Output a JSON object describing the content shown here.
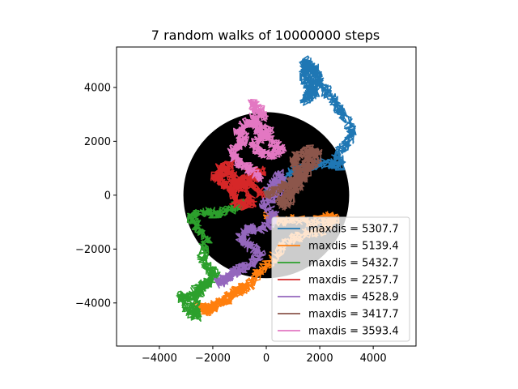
{
  "chart_data": {
    "type": "line",
    "title": "7 random walks of 10000000 steps",
    "xlabel": "",
    "ylabel": "",
    "xlim": [
      -5600,
      5600
    ],
    "ylim": [
      -5600,
      5500
    ],
    "x_ticks": [
      -4000,
      -2000,
      0,
      2000,
      4000
    ],
    "x_tick_labels": [
      "−4000",
      "−2000",
      "0",
      "2000",
      "4000"
    ],
    "y_ticks": [
      -4000,
      -2000,
      0,
      2000,
      4000
    ],
    "y_tick_labels": [
      "−4000",
      "−2000",
      "0",
      "2000",
      "4000"
    ],
    "circle": {
      "center": [
        0,
        0
      ],
      "radius": 3100,
      "color": "#000000"
    },
    "grid": false,
    "legend_position": "lower right",
    "series": [
      {
        "name": "maxdis = 5307.7",
        "color": "#1f77b4",
        "path": [
          [
            0,
            0
          ],
          [
            500,
            400
          ],
          [
            1000,
            900
          ],
          [
            1500,
            1000
          ],
          [
            2200,
            1200
          ],
          [
            2800,
            1100
          ],
          [
            2600,
            1500
          ],
          [
            3000,
            1900
          ],
          [
            3200,
            2400
          ],
          [
            2900,
            3000
          ],
          [
            2700,
            3300
          ],
          [
            2300,
            3800
          ],
          [
            2000,
            4100
          ],
          [
            1900,
            4600
          ],
          [
            1600,
            4800
          ],
          [
            1400,
            4600
          ],
          [
            1500,
            4200
          ],
          [
            1800,
            3800
          ],
          [
            1400,
            3500
          ],
          [
            1600,
            3800
          ],
          [
            1800,
            4200
          ],
          [
            1500,
            5000
          ],
          [
            1400,
            4700
          ]
        ]
      },
      {
        "name": "maxdis = 5139.4",
        "color": "#ff7f0e",
        "path": [
          [
            0,
            -700
          ],
          [
            400,
            -1000
          ],
          [
            1000,
            -900
          ],
          [
            1600,
            -1000
          ],
          [
            2300,
            -800
          ],
          [
            2600,
            -900
          ],
          [
            2100,
            -1300
          ],
          [
            1200,
            -1500
          ],
          [
            600,
            -1900
          ],
          [
            200,
            -2400
          ],
          [
            -300,
            -2900
          ],
          [
            -600,
            -3300
          ],
          [
            -1000,
            -3500
          ],
          [
            -1400,
            -3700
          ],
          [
            -1800,
            -4000
          ],
          [
            -2200,
            -4300
          ],
          [
            -2500,
            -4100
          ],
          [
            -2300,
            -4300
          ],
          [
            -1800,
            -4100
          ],
          [
            -1300,
            -3800
          ],
          [
            -800,
            -3400
          ]
        ]
      },
      {
        "name": "maxdis = 5432.7",
        "color": "#2ca02c",
        "path": [
          [
            -800,
            -300
          ],
          [
            -1300,
            -500
          ],
          [
            -1800,
            -700
          ],
          [
            -2300,
            -600
          ],
          [
            -2800,
            -800
          ],
          [
            -2600,
            -1200
          ],
          [
            -2200,
            -1600
          ],
          [
            -2400,
            -2200
          ],
          [
            -2200,
            -2700
          ],
          [
            -1900,
            -2900
          ],
          [
            -2200,
            -3200
          ],
          [
            -2600,
            -3500
          ],
          [
            -2900,
            -3800
          ],
          [
            -3200,
            -3700
          ],
          [
            -2900,
            -4300
          ],
          [
            -2600,
            -4500
          ],
          [
            -2700,
            -4000
          ],
          [
            -2400,
            -3500
          ],
          [
            -2100,
            -3200
          ]
        ]
      },
      {
        "name": "maxdis = 2257.7",
        "color": "#d62728",
        "path": [
          [
            0,
            0
          ],
          [
            -600,
            300
          ],
          [
            -1100,
            700
          ],
          [
            -1600,
            900
          ],
          [
            -1900,
            700
          ],
          [
            -1600,
            400
          ],
          [
            -1100,
            300
          ],
          [
            -600,
            600
          ],
          [
            -200,
            900
          ],
          [
            -500,
            800
          ],
          [
            -900,
            500
          ],
          [
            -1300,
            200
          ],
          [
            -1200,
            -200
          ],
          [
            -800,
            -400
          ],
          [
            -500,
            -200
          ],
          [
            -1200,
            600
          ],
          [
            -1700,
            1000
          ],
          [
            -1300,
            1100
          ]
        ]
      },
      {
        "name": "maxdis = 4528.9",
        "color": "#9467bd",
        "path": [
          [
            0,
            0
          ],
          [
            300,
            400
          ],
          [
            500,
            800
          ],
          [
            600,
            400
          ],
          [
            300,
            -100
          ],
          [
            -100,
            -300
          ],
          [
            300,
            -700
          ],
          [
            100,
            -1100
          ],
          [
            -400,
            -1300
          ],
          [
            -700,
            -1200
          ],
          [
            -1000,
            -1600
          ],
          [
            -600,
            -1900
          ],
          [
            -200,
            -2200
          ],
          [
            -600,
            -2600
          ],
          [
            -1100,
            -2800
          ],
          [
            -1500,
            -3100
          ],
          [
            -1800,
            -3300
          ],
          [
            -1400,
            -3000
          ],
          [
            -900,
            -2700
          ]
        ]
      },
      {
        "name": "maxdis = 3417.7",
        "color": "#8c564b",
        "path": [
          [
            0,
            0
          ],
          [
            400,
            200
          ],
          [
            700,
            400
          ],
          [
            1100,
            600
          ],
          [
            1300,
            900
          ],
          [
            1000,
            1200
          ],
          [
            1200,
            1500
          ],
          [
            1600,
            1700
          ],
          [
            1900,
            1500
          ],
          [
            1700,
            1100
          ],
          [
            1400,
            800
          ],
          [
            1100,
            400
          ],
          [
            800,
            100
          ],
          [
            500,
            -200
          ],
          [
            700,
            -400
          ],
          [
            1000,
            0
          ],
          [
            1300,
            500
          ],
          [
            1500,
            1200
          ],
          [
            1700,
            1600
          ]
        ]
      },
      {
        "name": "maxdis = 3593.4",
        "color": "#e377c2",
        "path": [
          [
            -200,
            600
          ],
          [
            -600,
            1000
          ],
          [
            -1000,
            1200
          ],
          [
            -1300,
            1500
          ],
          [
            -1100,
            1800
          ],
          [
            -800,
            2100
          ],
          [
            -1100,
            2400
          ],
          [
            -700,
            2700
          ],
          [
            -300,
            2600
          ],
          [
            100,
            2400
          ],
          [
            -200,
            2100
          ],
          [
            -500,
            1800
          ],
          [
            -200,
            1600
          ],
          [
            200,
            1500
          ],
          [
            600,
            1700
          ],
          [
            200,
            2000
          ],
          [
            -200,
            2300
          ],
          [
            -500,
            2700
          ],
          [
            -400,
            3100
          ],
          [
            -500,
            3400
          ],
          [
            -200,
            3200
          ],
          [
            -100,
            2800
          ]
        ]
      }
    ]
  }
}
